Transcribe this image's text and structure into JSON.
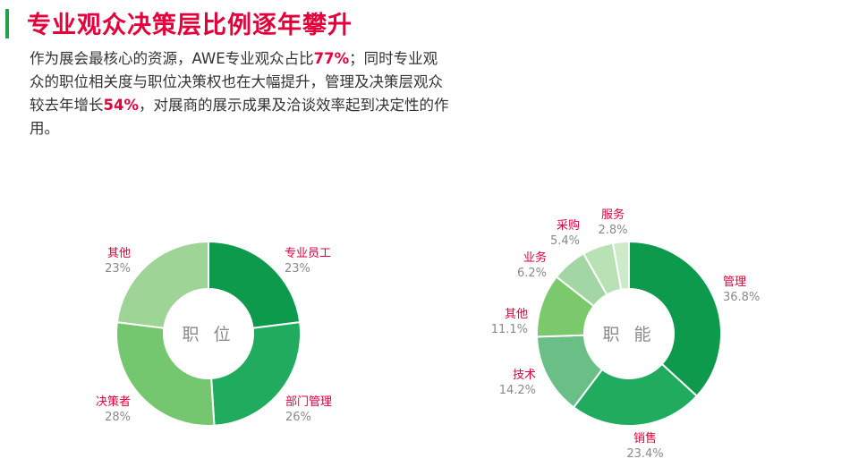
{
  "header": {
    "title": "专业观众决策层比例逐年攀升",
    "desc_part1": "作为展会最核心的资源，AWE专业观众占比",
    "desc_hl1": "77%",
    "desc_part2": "；同时专业观众的职位相关度与职位决策权也在大幅提升，管理及决策层观众较去年增长",
    "desc_hl2": "54%",
    "desc_part3": "，对展商的展示成果及洽谈效率起到决定性的作用。"
  },
  "colors": {
    "title": "#e4003a",
    "accent_bar": "#22a24a",
    "label": "#e4003a",
    "value": "#8a8a8a"
  },
  "chart_data": [
    {
      "type": "pie",
      "center_label": "职 位",
      "slices": [
        {
          "label": "专业员工",
          "value": 23,
          "value_text": "23%",
          "color": "#0e9a4d"
        },
        {
          "label": "部门管理",
          "value": 26,
          "value_text": "26%",
          "color": "#20ab5e"
        },
        {
          "label": "决策者",
          "value": 28,
          "value_text": "28%",
          "color": "#74c76f"
        },
        {
          "label": "其他",
          "value": 23,
          "value_text": "23%",
          "color": "#9ed597"
        }
      ]
    },
    {
      "type": "pie",
      "center_label": "职 能",
      "slices": [
        {
          "label": "管理",
          "value": 36.8,
          "value_text": "36.8%",
          "color": "#0e9a4d"
        },
        {
          "label": "销售",
          "value": 23.4,
          "value_text": "23.4%",
          "color": "#20ab5e"
        },
        {
          "label": "技术",
          "value": 14.2,
          "value_text": "14.2%",
          "color": "#69bf85"
        },
        {
          "label": "其他",
          "value": 11.1,
          "value_text": "11.1%",
          "color": "#7ac96c"
        },
        {
          "label": "业务",
          "value": 6.2,
          "value_text": "6.2%",
          "color": "#a2d7a5"
        },
        {
          "label": "采购",
          "value": 5.4,
          "value_text": "5.4%",
          "color": "#b8e2b6"
        },
        {
          "label": "服务",
          "value": 2.8,
          "value_text": "2.8%",
          "color": "#cdeac9"
        }
      ]
    }
  ]
}
